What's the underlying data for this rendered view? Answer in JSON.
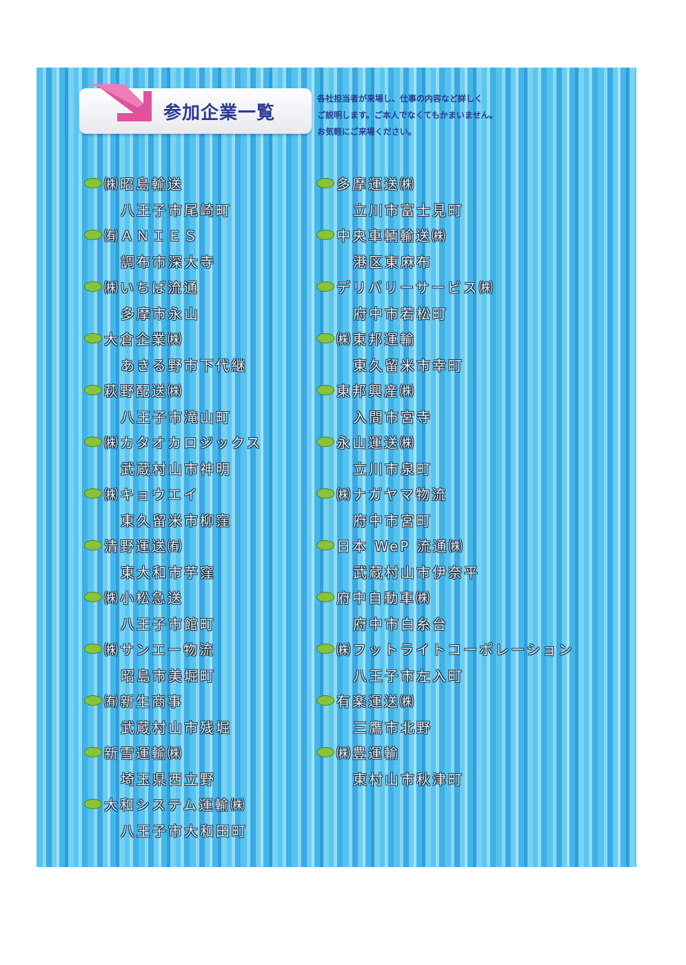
{
  "header": {
    "title": "参加企業一覧",
    "note": [
      "各社担当者が来場し、仕事の内容など詳しく",
      "ご説明します。ご本人でなくてもかまいません。",
      "お気軽にご来場ください。"
    ]
  },
  "companies_left": [
    {
      "name": "㈱昭島輸送",
      "address": "八王子市尾崎町"
    },
    {
      "name": "㈲ＡＮＩＥＳ",
      "address": "調布市深大寺"
    },
    {
      "name": "㈱いちば流通",
      "address": "多摩市永山"
    },
    {
      "name": "大倉企業㈱",
      "address": "あきる野市下代継"
    },
    {
      "name": "萩野配送㈱",
      "address": "八王子市滝山町"
    },
    {
      "name": "㈱カタオカロジックス",
      "address": "武蔵村山市神明"
    },
    {
      "name": "㈱キョウエイ",
      "address": "東久留米市柳窪"
    },
    {
      "name": "清野運送㈲",
      "address": "東大和市芋窪"
    },
    {
      "name": "㈱小松急送",
      "address": "八王子市館町"
    },
    {
      "name": "㈱サンエー物流",
      "address": "昭島市美堀町"
    },
    {
      "name": "㈲新生商事",
      "address": "武蔵村山市残堀"
    },
    {
      "name": "新雪運輸㈱",
      "address": "埼玉県西立野"
    },
    {
      "name": "大和システム運輸㈱",
      "address": "八王子市大和田町"
    }
  ],
  "companies_right": [
    {
      "name": "多摩運送㈱",
      "address": "立川市富士見町"
    },
    {
      "name": "中央車輌輸送㈱",
      "address": "港区東麻布"
    },
    {
      "name": "デリバリーサービス㈱",
      "address": "府中市若松町"
    },
    {
      "name": "㈱東邦運輸",
      "address": "東久留米市幸町"
    },
    {
      "name": "東邦興産㈱",
      "address": "入間市宮寺"
    },
    {
      "name": "永山運送㈱",
      "address": "立川市泉町"
    },
    {
      "name": "㈱ナガヤマ物流",
      "address": "府中市宮町"
    },
    {
      "name": "日本 WeP 流通㈱",
      "address": "武蔵村山市伊奈平"
    },
    {
      "name": "府中自動車㈱",
      "address": "府中市白糸台"
    },
    {
      "name": "㈱フットライトコーポレーション",
      "address": "八王子市左入町"
    },
    {
      "name": "有楽運送㈱",
      "address": "三鷹市北野"
    },
    {
      "name": "㈱豊運輸",
      "address": "東村山市秋津町"
    }
  ],
  "colors": {
    "title": "#2b3a8f",
    "bullet": "#86c43a",
    "arrow": "#e0529c"
  },
  "icons": {
    "title_marker": "pink-arrow-icon",
    "bullet": "green-oval-icon"
  }
}
